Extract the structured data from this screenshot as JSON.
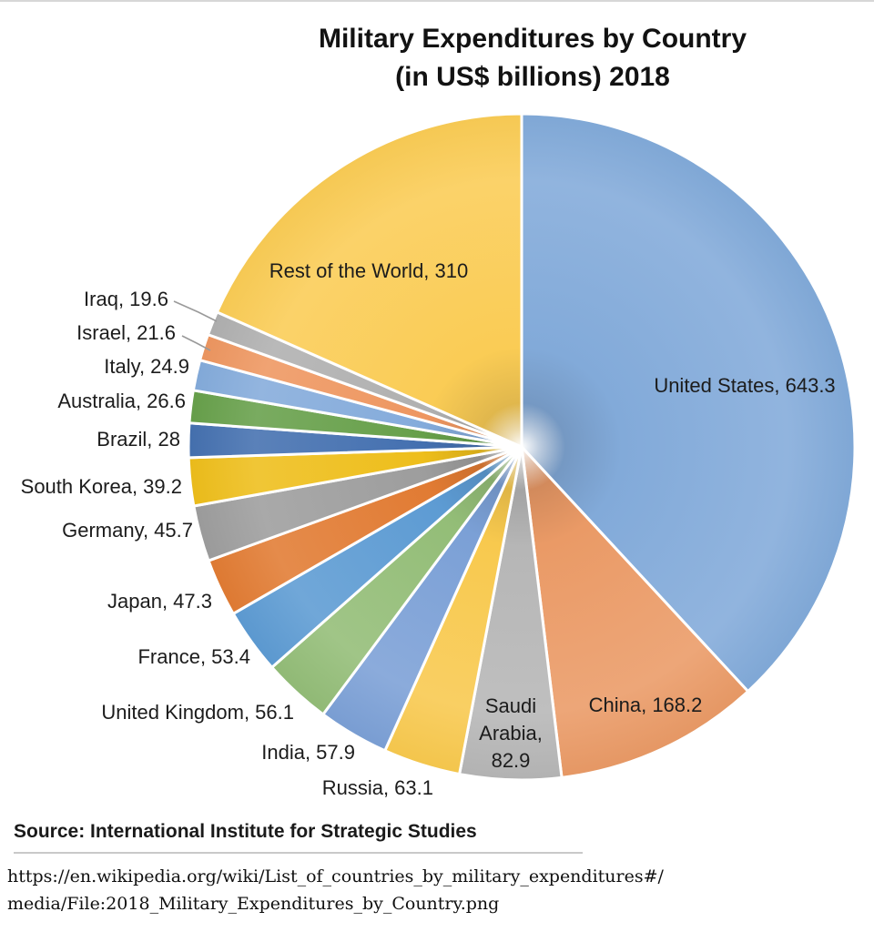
{
  "chart_data": {
    "type": "pie",
    "title_line1": "Military Expenditures by Country",
    "title_line2": "(in US$ billions) 2018",
    "start_angle_deg": 0,
    "direction": "clockwise",
    "slices": [
      {
        "id": "united-states",
        "name": "United States",
        "value": 643.3,
        "color": "#82AAD9"
      },
      {
        "id": "china",
        "name": "China",
        "value": 168.2,
        "color": "#EA9A66"
      },
      {
        "id": "saudi-arabia",
        "name": "Saudi Arabia",
        "value": 82.9,
        "color": "#B6B6B6"
      },
      {
        "id": "russia",
        "name": "Russia",
        "value": 63.1,
        "color": "#F8C94E"
      },
      {
        "id": "india",
        "name": "India",
        "value": 57.9,
        "color": "#7BA0D6"
      },
      {
        "id": "united-kingdom",
        "name": "United Kingdom",
        "value": 56.1,
        "color": "#93BD77"
      },
      {
        "id": "france",
        "name": "France",
        "value": 53.4,
        "color": "#5D9BD3"
      },
      {
        "id": "japan",
        "name": "Japan",
        "value": 47.3,
        "color": "#E17B33"
      },
      {
        "id": "germany",
        "name": "Germany",
        "value": 45.7,
        "color": "#9D9D9D"
      },
      {
        "id": "south-korea",
        "name": "South Korea",
        "value": 39.2,
        "color": "#EEBE1B"
      },
      {
        "id": "brazil",
        "name": "Brazil",
        "value": 28,
        "color": "#4470B0"
      },
      {
        "id": "australia",
        "name": "Australia",
        "value": 26.6,
        "color": "#67A04A"
      },
      {
        "id": "italy",
        "name": "Italy",
        "value": 24.9,
        "color": "#84ABDB"
      },
      {
        "id": "israel",
        "name": "Israel",
        "value": 21.6,
        "color": "#EE9660"
      },
      {
        "id": "iraq",
        "name": "Iraq",
        "value": 19.6,
        "color": "#B0B0B0"
      },
      {
        "id": "rest-of-world",
        "name": "Rest of the World",
        "value": 310,
        "color": "#FACC55"
      }
    ]
  },
  "footer": {
    "source": "Source: International Institute for Strategic Studies",
    "url_line1": "https://en.wikipedia.org/wiki/List_of_countries_by_military_expenditures#/",
    "url_line2": "media/File:2018_Military_Expenditures_by_Country.png"
  }
}
